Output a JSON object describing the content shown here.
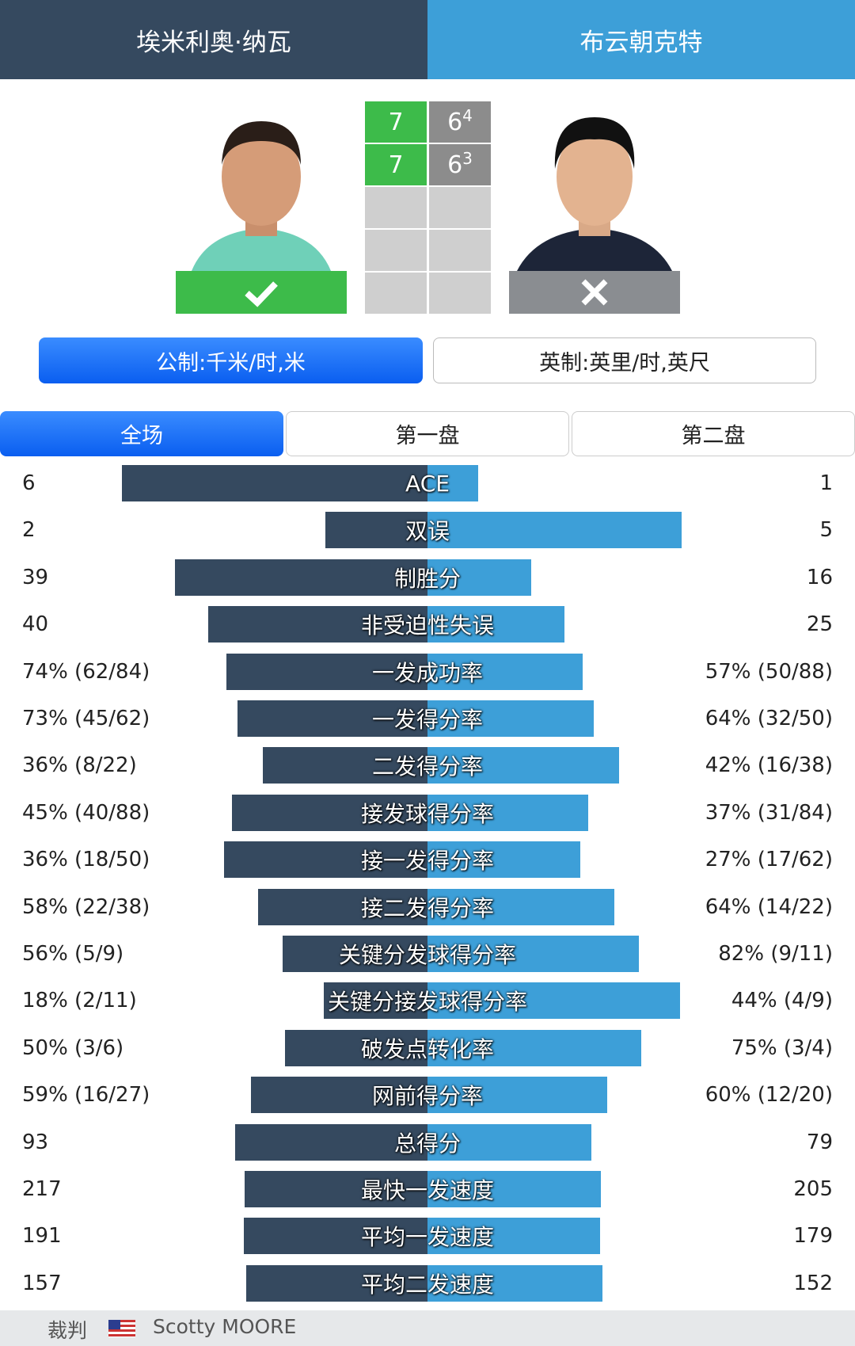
{
  "header": {
    "player1": "埃米利奥·纳瓦",
    "player2": "布云朝克特"
  },
  "scores": [
    {
      "player1": 7,
      "player2": 6,
      "player2_tiebreak": 4
    },
    {
      "player1": 7,
      "player2": 6,
      "player2_tiebreak": 3
    }
  ],
  "units": {
    "metric": "公制:千米/时,米",
    "imperial": "英制:英里/时,英尺"
  },
  "tabs": [
    "全场",
    "第一盘",
    "第二盘"
  ],
  "stats": [
    {
      "name": "ACE",
      "left": 6,
      "right": 1
    },
    {
      "name": "双误",
      "left": 2,
      "right": 5
    },
    {
      "name": "制胜分",
      "left": 39,
      "right": 16
    },
    {
      "name": "非受迫性失误",
      "left": 40,
      "right": 25
    },
    {
      "name": "一发成功率",
      "left": {
        "value": 74,
        "label": "74% (62/84)"
      },
      "right": {
        "value": 57,
        "label": "57% (50/88)"
      }
    },
    {
      "name": "一发得分率",
      "left": {
        "value": 73,
        "label": "73% (45/62)"
      },
      "right": {
        "value": 64,
        "label": "64% (32/50)"
      }
    },
    {
      "name": "二发得分率",
      "left": {
        "value": 36,
        "label": "36% (8/22)"
      },
      "right": {
        "value": 42,
        "label": "42% (16/38)"
      }
    },
    {
      "name": "接发球得分率",
      "left": {
        "value": 45,
        "label": "45% (40/88)"
      },
      "right": {
        "value": 37,
        "label": "37% (31/84)"
      }
    },
    {
      "name": "接一发得分率",
      "left": {
        "value": 36,
        "label": "36% (18/50)"
      },
      "right": {
        "value": 27,
        "label": "27% (17/62)"
      }
    },
    {
      "name": "接二发得分率",
      "left": {
        "value": 58,
        "label": "58% (22/38)"
      },
      "right": {
        "value": 64,
        "label": "64% (14/22)"
      }
    },
    {
      "name": "关键分发球得分率",
      "left": {
        "value": 56,
        "label": "56% (5/9)"
      },
      "right": {
        "value": 82,
        "label": "82% (9/11)"
      }
    },
    {
      "name": "关键分接发球得分率",
      "left": {
        "value": 18,
        "label": "18% (2/11)"
      },
      "right": {
        "value": 44,
        "label": "44% (4/9)"
      }
    },
    {
      "name": "破发点转化率",
      "left": {
        "value": 50,
        "label": "50% (3/6)"
      },
      "right": {
        "value": 75,
        "label": "75% (3/4)"
      }
    },
    {
      "name": "网前得分率",
      "left": {
        "value": 59,
        "label": "59% (16/27)"
      },
      "right": {
        "value": 60,
        "label": "60% (12/20)"
      }
    },
    {
      "name": "总得分",
      "left": 93,
      "right": 79
    },
    {
      "name": "最快一发速度",
      "left": 217,
      "right": 205
    },
    {
      "name": "平均一发速度",
      "left": 191,
      "right": 179
    },
    {
      "name": "平均二发速度",
      "left": 157,
      "right": 152
    }
  ],
  "footer": {
    "label": "裁判",
    "name": "Scotty MOORE"
  }
}
